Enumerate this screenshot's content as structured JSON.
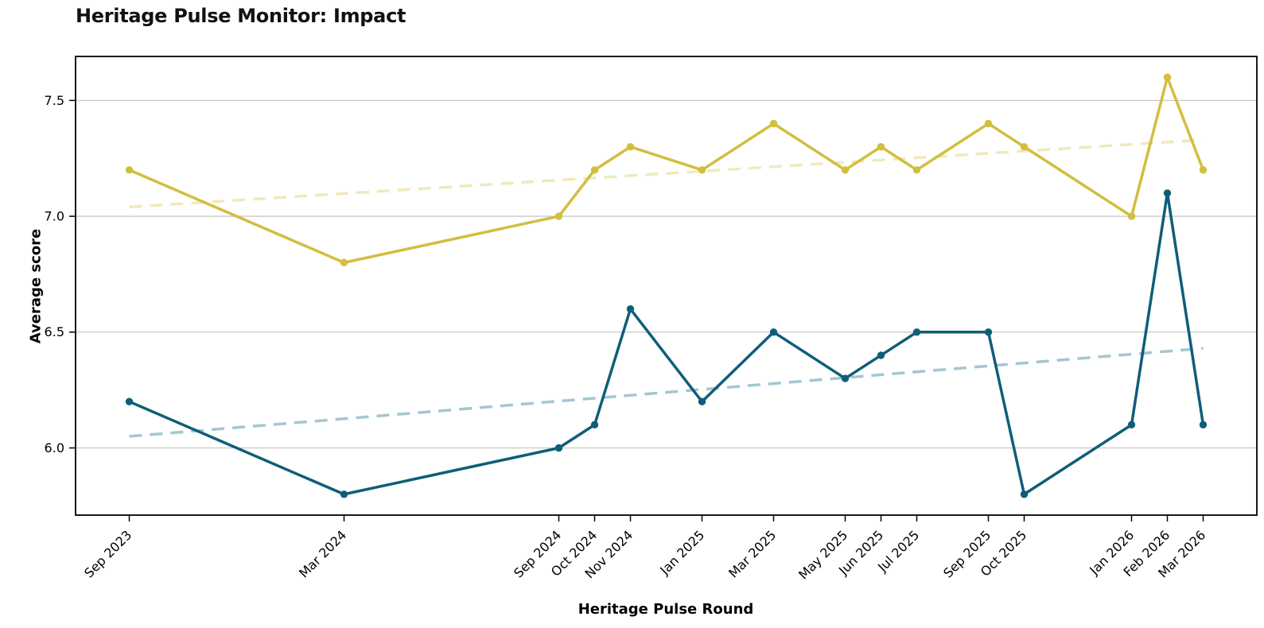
{
  "chart_data": {
    "type": "line",
    "title": "Heritage Pulse Monitor: Impact",
    "xlabel": "Heritage Pulse Round",
    "ylabel": "Average score",
    "categories": [
      "Sep 2023",
      "Mar 2024",
      "Sep 2024",
      "Oct 2024",
      "Nov 2024",
      "Jan 2025",
      "Mar 2025",
      "May 2025",
      "Jun 2025",
      "Jul 2025",
      "Sep 2025",
      "Oct 2025",
      "Jan 2026",
      "Feb 2026",
      "Mar 2026"
    ],
    "x_month_offsets": [
      0,
      6,
      12,
      13,
      14,
      16,
      18,
      20,
      21,
      22,
      24,
      25,
      28,
      29,
      30
    ],
    "series": [
      {
        "id": "gold",
        "color": "#d2be3f",
        "marker": "circle",
        "values": [
          7.2,
          6.8,
          7.0,
          7.2,
          7.3,
          7.2,
          7.4,
          7.2,
          7.3,
          7.2,
          7.4,
          7.3,
          7.0,
          7.6,
          7.2
        ]
      },
      {
        "id": "teal",
        "color": "#0f5e79",
        "marker": "circle",
        "values": [
          6.2,
          5.8,
          6.0,
          6.1,
          6.6,
          6.2,
          6.5,
          6.3,
          6.4,
          6.5,
          6.5,
          5.8,
          6.1,
          7.1,
          6.1
        ]
      }
    ],
    "trendlines": [
      {
        "id": "gold-trend",
        "color": "#f1e9bb",
        "style": "dashed",
        "x_start_month": 0,
        "x_end_month": 30,
        "y_start": 7.04,
        "y_end": 7.33
      },
      {
        "id": "teal-trend",
        "color": "#a3c6d2",
        "style": "dashed",
        "x_start_month": 0,
        "x_end_month": 30,
        "y_start": 6.05,
        "y_end": 6.43
      }
    ],
    "y_ticks": [
      6.0,
      6.5,
      7.0,
      7.5
    ],
    "y_tick_labels": [
      "6.0",
      "6.5",
      "7.0",
      "7.5"
    ],
    "xlim_months": [
      -1.5,
      31.5
    ],
    "ylim": [
      5.71,
      7.69
    ],
    "grid": "horizontal",
    "grid_color": "#c9c9c9",
    "legend": "none",
    "x_tick_rotation_deg": 45
  }
}
